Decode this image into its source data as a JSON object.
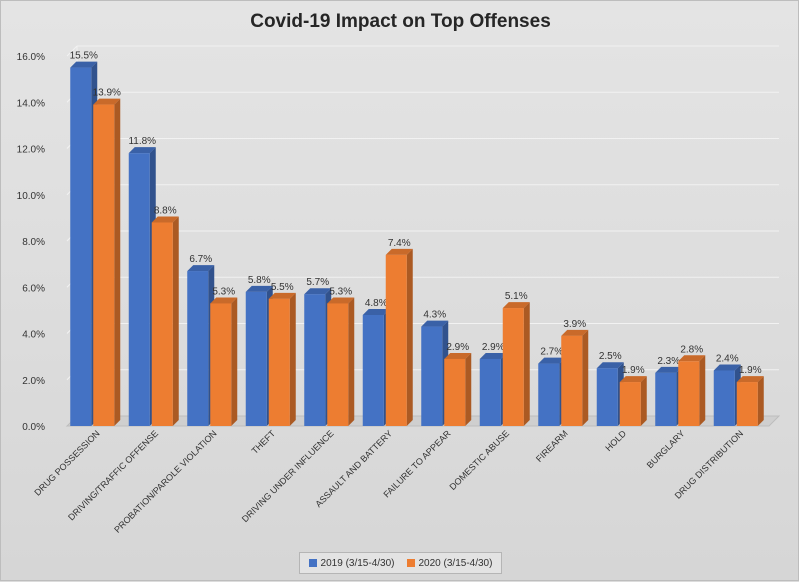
{
  "chart_data": {
    "type": "bar",
    "title": "Covid-19 Impact on Top Offenses",
    "xlabel": "",
    "ylabel": "",
    "ylim": [
      0,
      16
    ],
    "yticks": [
      "0.0%",
      "2.0%",
      "4.0%",
      "6.0%",
      "8.0%",
      "10.0%",
      "12.0%",
      "14.0%",
      "16.0%"
    ],
    "grid": true,
    "legend_position": "bottom",
    "categories": [
      "DRUG POSSESSION",
      "DRIVING/TRAFFIC OFFENSE",
      "PROBATION/PAROLE VIOLATION",
      "THEFT",
      "DRIVING UNDER INFLUENCE",
      "ASSAULT AND BATTERY",
      "FAILURE TO APPEAR",
      "DOMESTIC ABUSE",
      "FIREARM",
      "HOLD",
      "BURGLARY",
      "DRUG DISTRIBUTION"
    ],
    "series": [
      {
        "name": "2019 (3/15-4/30)",
        "color": "#4472c4",
        "values": [
          15.5,
          11.8,
          6.7,
          5.8,
          5.7,
          4.8,
          4.3,
          2.9,
          2.7,
          2.5,
          2.3,
          2.4
        ],
        "labels": [
          "15.5%",
          "11.8%",
          "6.7%",
          "5.8%",
          "5.7%",
          "4.8%",
          "4.3%",
          "2.9%",
          "2.7%",
          "2.5%",
          "2.3%",
          "2.4%"
        ]
      },
      {
        "name": "2020 (3/15-4/30)",
        "color": "#ed7d31",
        "values": [
          13.9,
          8.8,
          5.3,
          5.5,
          5.3,
          7.4,
          2.9,
          5.1,
          3.9,
          1.9,
          2.8,
          1.9
        ],
        "labels": [
          "13.9%",
          "8.8%",
          "5.3%",
          "5.5%",
          "5.3%",
          "7.4%",
          "2.9%",
          "5.1%",
          "3.9%",
          "1.9%",
          "2.8%",
          "1.9%"
        ]
      }
    ]
  }
}
